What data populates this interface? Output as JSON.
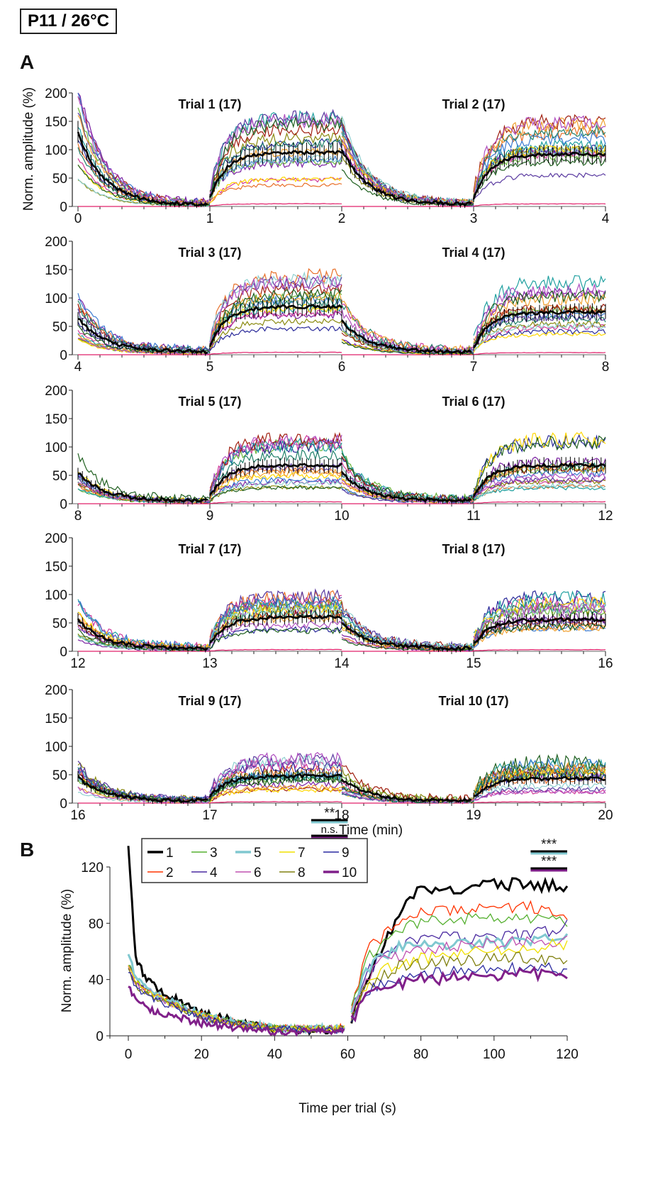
{
  "header": {
    "label": "P11 / 26°C"
  },
  "panels": {
    "a": "A",
    "b": "B"
  },
  "chart_data": [
    {
      "type": "line",
      "panel": "A",
      "ylabel": "Norm. amplitude (%)",
      "xlabel": "Time (min)",
      "ylim": [
        0,
        200
      ],
      "yticks": [
        0,
        50,
        100,
        150,
        200
      ],
      "xlim": [
        0,
        20
      ],
      "xticks": [
        [
          0,
          1,
          2,
          3,
          4
        ],
        [
          4,
          5,
          6,
          7,
          8
        ],
        [
          8,
          9,
          10,
          11,
          12
        ],
        [
          12,
          13,
          14,
          15,
          16
        ],
        [
          16,
          17,
          18,
          19,
          20
        ]
      ],
      "n_traces": 17,
      "trials": [
        {
          "title": "Trial 1 (17)",
          "mean_off_start": 130,
          "mean_off_end": 3,
          "mean_on_start": 15,
          "mean_on_plateau": 95
        },
        {
          "title": "Trial 2 (17)",
          "mean_off_start": 100,
          "mean_off_end": 4,
          "mean_on_start": 15,
          "mean_on_plateau": 92
        },
        {
          "title": "Trial 3 (17)",
          "mean_off_start": 65,
          "mean_off_end": 5,
          "mean_on_start": 15,
          "mean_on_plateau": 85
        },
        {
          "title": "Trial 4 (17)",
          "mean_off_start": 60,
          "mean_off_end": 5,
          "mean_on_start": 12,
          "mean_on_plateau": 75
        },
        {
          "title": "Trial 5 (17)",
          "mean_off_start": 55,
          "mean_off_end": 5,
          "mean_on_start": 12,
          "mean_on_plateau": 68
        },
        {
          "title": "Trial 6 (17)",
          "mean_off_start": 55,
          "mean_off_end": 5,
          "mean_on_start": 12,
          "mean_on_plateau": 68
        },
        {
          "title": "Trial 7 (17)",
          "mean_off_start": 55,
          "mean_off_end": 5,
          "mean_on_start": 12,
          "mean_on_plateau": 60
        },
        {
          "title": "Trial 8 (17)",
          "mean_off_start": 50,
          "mean_off_end": 5,
          "mean_on_start": 12,
          "mean_on_plateau": 56
        },
        {
          "title": "Trial 9 (17)",
          "mean_off_start": 45,
          "mean_off_end": 4,
          "mean_on_start": 10,
          "mean_on_plateau": 48
        },
        {
          "title": "Trial 10 (17)",
          "mean_off_start": 42,
          "mean_off_end": 4,
          "mean_on_start": 10,
          "mean_on_plateau": 43
        }
      ],
      "trace_colors": [
        "#7a1fa2",
        "#e8702a",
        "#6ab43a",
        "#d03a9a",
        "#2a2a9a",
        "#8a8a10",
        "#20a0a0",
        "#a01f10",
        "#ffd700",
        "#3a7ad0",
        "#e0206a",
        "#20806a",
        "#5a3aa0",
        "#f0a030",
        "#90d0d0",
        "#b050c0",
        "#206020"
      ]
    },
    {
      "type": "line",
      "panel": "B",
      "ylabel": "Norm. amplitude (%)",
      "xlabel": "Time per trial (s)",
      "xlim": [
        0,
        120
      ],
      "ylim": [
        0,
        120
      ],
      "xticks": [
        0,
        20,
        40,
        60,
        80,
        100,
        120
      ],
      "yticks": [
        0,
        40,
        80,
        120
      ],
      "x": [
        0,
        2,
        5,
        10,
        20,
        30,
        40,
        50,
        59,
        61,
        65,
        70,
        75,
        80,
        90,
        100,
        110,
        120
      ],
      "series": [
        {
          "name": "1",
          "color": "#000000",
          "bold": true,
          "values": [
            135,
            55,
            40,
            30,
            17,
            10,
            5,
            4,
            4,
            10,
            40,
            65,
            90,
            105,
            105,
            108,
            108,
            105
          ]
        },
        {
          "name": "2",
          "color": "#ff3300",
          "bold": false,
          "values": [
            50,
            40,
            33,
            26,
            15,
            9,
            6,
            5,
            6,
            18,
            60,
            72,
            80,
            88,
            90,
            92,
            92,
            85
          ]
        },
        {
          "name": "3",
          "color": "#55b030",
          "bold": false,
          "values": [
            50,
            40,
            33,
            26,
            15,
            9,
            6,
            5,
            5,
            18,
            55,
            68,
            75,
            82,
            84,
            82,
            83,
            80
          ]
        },
        {
          "name": "4",
          "color": "#4a2aa0",
          "bold": false,
          "values": [
            50,
            38,
            32,
            25,
            14,
            8,
            5,
            5,
            5,
            15,
            45,
            58,
            64,
            68,
            70,
            70,
            72,
            78
          ]
        },
        {
          "name": "5",
          "color": "#80c8d0",
          "bold": true,
          "values": [
            58,
            42,
            34,
            26,
            15,
            9,
            6,
            5,
            5,
            16,
            45,
            58,
            63,
            65,
            66,
            66,
            67,
            71
          ]
        },
        {
          "name": "6",
          "color": "#c050b0",
          "bold": false,
          "values": [
            50,
            38,
            32,
            25,
            14,
            8,
            5,
            5,
            5,
            15,
            40,
            55,
            58,
            62,
            64,
            66,
            66,
            67
          ]
        },
        {
          "name": "7",
          "color": "#f0e000",
          "bold": false,
          "values": [
            50,
            38,
            32,
            25,
            14,
            8,
            5,
            5,
            5,
            14,
            36,
            46,
            52,
            55,
            58,
            60,
            62,
            66
          ]
        },
        {
          "name": "8",
          "color": "#808010",
          "bold": false,
          "values": [
            48,
            36,
            30,
            24,
            13,
            8,
            5,
            5,
            5,
            14,
            34,
            44,
            50,
            51,
            53,
            55,
            55,
            54
          ]
        },
        {
          "name": "9",
          "color": "#2a2aa0",
          "bold": false,
          "values": [
            45,
            35,
            29,
            23,
            13,
            8,
            5,
            4,
            4,
            13,
            30,
            38,
            42,
            44,
            46,
            47,
            48,
            47
          ]
        },
        {
          "name": "10",
          "color": "#80208a",
          "bold": true,
          "values": [
            35,
            25,
            20,
            15,
            9,
            5,
            3,
            3,
            3,
            12,
            26,
            34,
            36,
            40,
            42,
            43,
            44,
            45
          ]
        }
      ],
      "legend": "top-left",
      "annotations": [
        {
          "text": "**",
          "x_range": [
            50,
            60
          ],
          "compare": [
            "1",
            "5"
          ]
        },
        {
          "text": "n.s.",
          "x_range": [
            50,
            60
          ],
          "compare": [
            "1",
            "10"
          ]
        },
        {
          "text": "***",
          "x_range": [
            110,
            120
          ],
          "compare": [
            "1",
            "5"
          ]
        },
        {
          "text": "***",
          "x_range": [
            110,
            120
          ],
          "compare": [
            "1",
            "10"
          ]
        }
      ]
    }
  ]
}
